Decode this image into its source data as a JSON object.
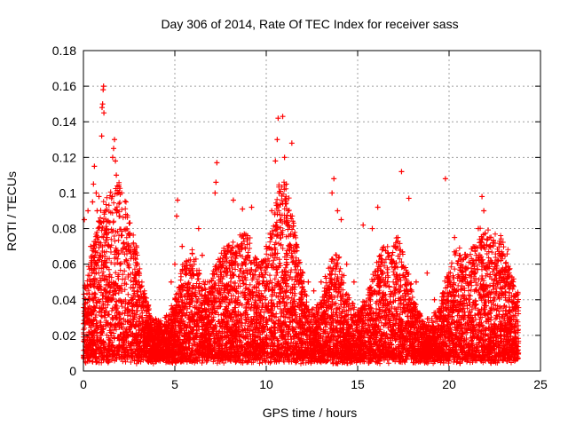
{
  "chart_data": {
    "type": "scatter",
    "title": "Day 306 of 2014, Rate Of TEC Index for receiver sass",
    "xlabel": "GPS time / hours",
    "ylabel": "ROTI / TECUs",
    "xlim": [
      0,
      25
    ],
    "ylim": [
      0,
      0.18
    ],
    "x_ticks": [
      0,
      5,
      10,
      15,
      20,
      25
    ],
    "x_tick_labels": [
      "0",
      "5",
      "10",
      "15",
      "20",
      "25"
    ],
    "y_ticks": [
      0,
      0.02,
      0.04,
      0.06,
      0.08,
      0.1,
      0.12,
      0.14,
      0.16,
      0.18
    ],
    "y_tick_labels": [
      "0",
      "0.02",
      "0.04",
      "0.06",
      "0.08",
      "0.1",
      "0.12",
      "0.14",
      "0.16",
      "0.18"
    ],
    "grid": true,
    "legend": "none",
    "marker": "plus",
    "color": "#ff0000",
    "series": [
      {
        "values": [
          [
            0.05,
            0.085
          ],
          [
            0.25,
            0.09
          ],
          [
            0.4,
            0.07
          ],
          [
            0.5,
            0.095
          ],
          [
            0.55,
            0.105
          ],
          [
            0.6,
            0.115
          ],
          [
            0.7,
            0.1
          ],
          [
            0.75,
            0.09
          ],
          [
            0.8,
            0.075
          ],
          [
            0.85,
            0.098
          ],
          [
            0.9,
            0.065
          ],
          [
            1.0,
            0.132
          ],
          [
            1.02,
            0.148
          ],
          [
            1.05,
            0.15
          ],
          [
            1.08,
            0.158
          ],
          [
            1.1,
            0.16
          ],
          [
            1.12,
            0.145
          ],
          [
            1.2,
            0.09
          ],
          [
            1.3,
            0.075
          ],
          [
            1.4,
            0.07
          ],
          [
            1.6,
            0.12
          ],
          [
            1.65,
            0.125
          ],
          [
            1.7,
            0.13
          ],
          [
            1.75,
            0.118
          ],
          [
            1.8,
            0.11
          ],
          [
            1.85,
            0.09
          ],
          [
            2.0,
            0.06
          ],
          [
            2.2,
            0.072
          ],
          [
            2.5,
            0.058
          ],
          [
            2.8,
            0.052
          ],
          [
            3.0,
            0.04
          ],
          [
            3.2,
            0.03
          ],
          [
            3.5,
            0.025
          ],
          [
            4.0,
            0.028
          ],
          [
            4.5,
            0.03
          ],
          [
            4.8,
            0.05
          ],
          [
            5.0,
            0.06
          ],
          [
            5.1,
            0.087
          ],
          [
            5.15,
            0.096
          ],
          [
            5.4,
            0.07
          ],
          [
            5.6,
            0.055
          ],
          [
            6.0,
            0.048
          ],
          [
            6.3,
            0.08
          ],
          [
            6.5,
            0.065
          ],
          [
            6.9,
            0.05
          ],
          [
            7.2,
            0.1
          ],
          [
            7.25,
            0.106
          ],
          [
            7.3,
            0.117
          ],
          [
            7.5,
            0.06
          ],
          [
            7.8,
            0.055
          ],
          [
            8.2,
            0.096
          ],
          [
            8.5,
            0.07
          ],
          [
            8.7,
            0.091
          ],
          [
            8.8,
            0.077
          ],
          [
            9.0,
            0.065
          ],
          [
            9.2,
            0.092
          ],
          [
            9.6,
            0.06
          ],
          [
            10.0,
            0.07
          ],
          [
            10.3,
            0.09
          ],
          [
            10.5,
            0.118
          ],
          [
            10.6,
            0.13
          ],
          [
            10.65,
            0.142
          ],
          [
            10.7,
            0.1
          ],
          [
            10.8,
            0.085
          ],
          [
            10.9,
            0.143
          ],
          [
            11.0,
            0.12
          ],
          [
            11.1,
            0.105
          ],
          [
            11.2,
            0.09
          ],
          [
            11.4,
            0.128
          ],
          [
            11.6,
            0.06
          ],
          [
            12.0,
            0.055
          ],
          [
            12.3,
            0.05
          ],
          [
            12.6,
            0.045
          ],
          [
            13.0,
            0.05
          ],
          [
            13.3,
            0.045
          ],
          [
            13.6,
            0.1
          ],
          [
            13.7,
            0.108
          ],
          [
            13.9,
            0.09
          ],
          [
            14.1,
            0.085
          ],
          [
            14.4,
            0.06
          ],
          [
            14.8,
            0.05
          ],
          [
            15.3,
            0.082
          ],
          [
            15.8,
            0.08
          ],
          [
            16.1,
            0.092
          ],
          [
            16.5,
            0.05
          ],
          [
            17.0,
            0.07
          ],
          [
            17.2,
            0.075
          ],
          [
            17.4,
            0.112
          ],
          [
            17.8,
            0.097
          ],
          [
            18.2,
            0.05
          ],
          [
            18.8,
            0.055
          ],
          [
            19.2,
            0.04
          ],
          [
            19.8,
            0.108
          ],
          [
            20.0,
            0.05
          ],
          [
            20.3,
            0.075
          ],
          [
            20.6,
            0.065
          ],
          [
            21.0,
            0.05
          ],
          [
            21.3,
            0.062
          ],
          [
            21.6,
            0.08
          ],
          [
            21.8,
            0.098
          ],
          [
            21.9,
            0.09
          ],
          [
            22.2,
            0.07
          ],
          [
            22.4,
            0.072
          ],
          [
            22.8,
            0.055
          ],
          [
            23.2,
            0.05
          ],
          [
            23.5,
            0.048
          ]
        ]
      }
    ]
  }
}
